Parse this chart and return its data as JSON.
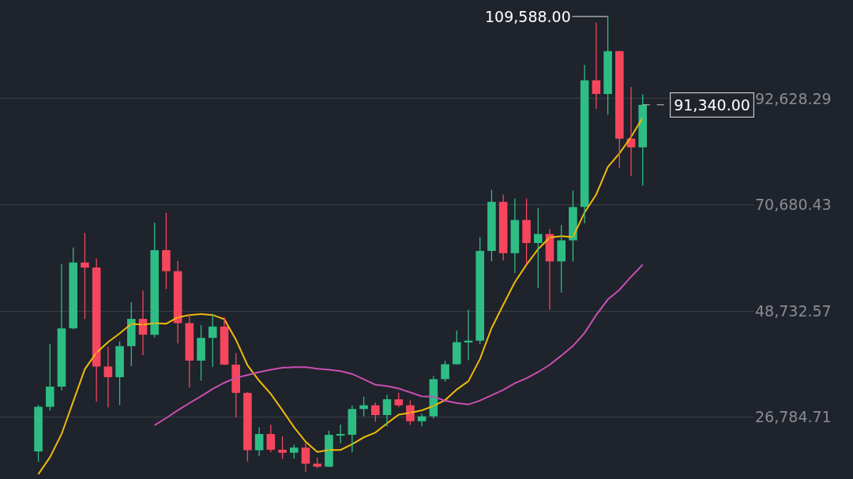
{
  "chart_data": {
    "type": "candlestick",
    "categories": [
      null,
      null,
      null,
      null,
      null,
      null,
      null,
      null,
      null,
      null,
      null,
      null,
      null,
      null,
      null,
      null,
      null,
      null,
      null,
      null,
      null,
      null,
      null,
      null,
      null,
      null,
      null,
      null,
      null,
      null,
      null,
      null,
      null,
      null,
      null,
      null,
      null,
      null,
      null,
      null,
      null,
      null,
      null,
      null,
      null,
      null,
      null,
      null,
      null,
      null,
      null,
      null,
      null
    ],
    "ohlc": [
      [
        19695,
        29300,
        17572,
        28923
      ],
      [
        28923,
        41950,
        28130,
        33092
      ],
      [
        33092,
        58352,
        32296,
        45135
      ],
      [
        45135,
        61844,
        44950,
        58740
      ],
      [
        58740,
        64854,
        47044,
        57694
      ],
      [
        57694,
        59592,
        30000,
        37253
      ],
      [
        37253,
        41330,
        28805,
        35045
      ],
      [
        35045,
        42448,
        29278,
        41462
      ],
      [
        41462,
        50500,
        37332,
        47100
      ],
      [
        47100,
        52920,
        39600,
        43824
      ],
      [
        43824,
        67000,
        43283,
        61299
      ],
      [
        61299,
        69000,
        53256,
        56950
      ],
      [
        56950,
        59053,
        42000,
        46216
      ],
      [
        46216,
        47990,
        32917,
        38466
      ],
      [
        38466,
        45821,
        34322,
        43160
      ],
      [
        43160,
        48189,
        37155,
        45510
      ],
      [
        45510,
        47444,
        37578,
        37630
      ],
      [
        37630,
        40023,
        26700,
        31801
      ],
      [
        31801,
        31982,
        17622,
        19942
      ],
      [
        19942,
        24668,
        18781,
        23293
      ],
      [
        23293,
        25211,
        19520,
        20050
      ],
      [
        20050,
        22799,
        18125,
        19423
      ],
      [
        19423,
        21085,
        18190,
        20490
      ],
      [
        20490,
        21480,
        15476,
        17164
      ],
      [
        17164,
        18387,
        16256,
        16542
      ],
      [
        16542,
        23960,
        16499,
        23125
      ],
      [
        23125,
        25250,
        21351,
        23141
      ],
      [
        23141,
        29184,
        19549,
        28465
      ],
      [
        28465,
        31000,
        26942,
        29233
      ],
      [
        29233,
        29820,
        25811,
        27210
      ],
      [
        27210,
        31431,
        24800,
        30472
      ],
      [
        30472,
        31804,
        28861,
        29232
      ],
      [
        29232,
        30244,
        25166,
        25941
      ],
      [
        25941,
        27483,
        24901,
        26962
      ],
      [
        26962,
        35280,
        26538,
        34640
      ],
      [
        34640,
        38450,
        34098,
        37723
      ],
      [
        37723,
        44700,
        37616,
        42283
      ],
      [
        42283,
        48970,
        38555,
        42582
      ],
      [
        42582,
        64000,
        41884,
        61130
      ],
      [
        61130,
        73777,
        59005,
        71280
      ],
      [
        71280,
        72797,
        59191,
        60672
      ],
      [
        60672,
        71979,
        56552,
        67540
      ],
      [
        67540,
        71950,
        58402,
        62772
      ],
      [
        62772,
        70079,
        53485,
        64628
      ],
      [
        64628,
        65660,
        49000,
        58974
      ],
      [
        58974,
        66498,
        52550,
        63327
      ],
      [
        63327,
        73620,
        58946,
        70215
      ],
      [
        70215,
        99588,
        66835,
        96407
      ],
      [
        96407,
        108353,
        90500,
        93576
      ],
      [
        93576,
        109588,
        89256,
        102429
      ],
      [
        102429,
        102500,
        78258,
        84350
      ],
      [
        84350,
        95000,
        76606,
        82550
      ],
      [
        82550,
        93500,
        74620,
        91340
      ]
    ],
    "colors": [
      "#2ebd85",
      "#2ebd85",
      "#2ebd85",
      "#2ebd85",
      "#f6465d",
      "#f6465d",
      "#f6465d",
      "#2ebd85",
      "#2ebd85",
      "#f6465d",
      "#2ebd85",
      "#f6465d",
      "#f6465d",
      "#f6465d",
      "#2ebd85",
      "#2ebd85",
      "#f6465d",
      "#f6465d",
      "#f6465d",
      "#2ebd85",
      "#f6465d",
      "#f6465d",
      "#2ebd85",
      "#f6465d",
      "#f6465d",
      "#2ebd85",
      "#2ebd85",
      "#2ebd85",
      "#2ebd85",
      "#f6465d",
      "#2ebd85",
      "#f6465d",
      "#f6465d",
      "#2ebd85",
      "#2ebd85",
      "#2ebd85",
      "#2ebd85",
      "#2ebd85",
      "#2ebd85",
      "#2ebd85",
      "#f6465d",
      "#2ebd85",
      "#f6465d",
      "#2ebd85",
      "#f6465d",
      "#2ebd85",
      "#2ebd85",
      "#2ebd85",
      "#f6465d",
      "#2ebd85",
      "#f6465d",
      "#f6465d",
      "#2ebd85"
    ],
    "series": [
      {
        "type": "line",
        "color": "#f0b90b",
        "values": [
          15000,
          18500,
          23300,
          30000,
          36700,
          40100,
          42300,
          44100,
          46100,
          45900,
          46200,
          46100,
          47400,
          47900,
          48100,
          47900,
          47000,
          42800,
          37500,
          34300,
          31600,
          28200,
          24700,
          21700,
          19600,
          20000,
          20000,
          21200,
          22600,
          23600,
          25500,
          27300,
          27700,
          28200,
          29100,
          30300,
          32500,
          34200,
          38800,
          45200,
          50000,
          54700,
          58300,
          61500,
          63900,
          64200,
          64000,
          69100,
          72800,
          78500,
          81300,
          84700,
          88700
        ]
      },
      {
        "type": "line",
        "color": "#c94fb3",
        "values": [
          null,
          null,
          null,
          null,
          null,
          null,
          null,
          null,
          null,
          null,
          25100,
          26600,
          28200,
          29700,
          31100,
          32600,
          33900,
          34900,
          35500,
          36100,
          36600,
          37000,
          37100,
          37100,
          36800,
          36600,
          36300,
          35700,
          34600,
          33500,
          33200,
          32700,
          31900,
          31100,
          31000,
          30200,
          29700,
          29400,
          30200,
          31300,
          32400,
          33800,
          34800,
          36100,
          37600,
          39500,
          41500,
          44200,
          47900,
          51100,
          53100,
          55800,
          58300
        ]
      }
    ],
    "ylim": [
      14000,
      113000
    ],
    "yticks": [
      {
        "value": 26784.71,
        "label": "26,784.71"
      },
      {
        "value": 48732.57,
        "label": "48,732.57"
      },
      {
        "value": 70680.43,
        "label": "70,680.43"
      },
      {
        "value": 92628.29,
        "label": "92,628.29"
      }
    ],
    "grid": "y",
    "tick_labels": "y",
    "annotations": [
      "109,588.00"
    ],
    "ref_lines": [
      {
        "axis": "y",
        "value": 91340,
        "label": "91,340.00",
        "color": "#c8c8c8",
        "line_style": "dashed"
      }
    ]
  }
}
